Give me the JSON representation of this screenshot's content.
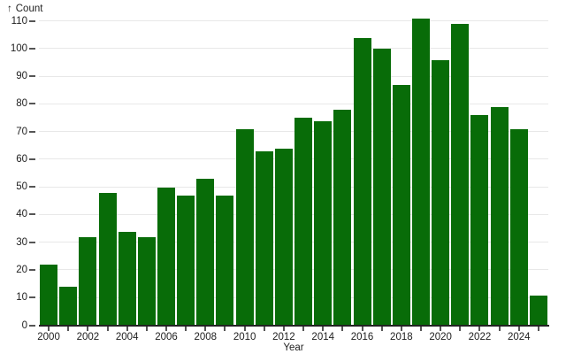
{
  "chart_data": {
    "type": "bar",
    "title": "",
    "ylabel": "Count",
    "ylabel_arrow": "↑",
    "xlabel": "Year",
    "categories": [
      2000,
      2001,
      2002,
      2003,
      2004,
      2005,
      2006,
      2007,
      2008,
      2009,
      2010,
      2011,
      2012,
      2013,
      2014,
      2015,
      2016,
      2017,
      2018,
      2019,
      2020,
      2021,
      2022,
      2023,
      2024,
      2025
    ],
    "values": [
      22,
      14,
      32,
      48,
      34,
      32,
      50,
      47,
      53,
      47,
      71,
      63,
      64,
      75,
      74,
      78,
      104,
      100,
      87,
      111,
      96,
      109,
      76,
      79,
      71,
      11
    ],
    "yticks": [
      0,
      10,
      20,
      30,
      40,
      50,
      60,
      70,
      80,
      90,
      100,
      110
    ],
    "xtick_labels": [
      2000,
      2002,
      2004,
      2006,
      2008,
      2010,
      2012,
      2014,
      2016,
      2018,
      2020,
      2022,
      2024
    ],
    "ylim": [
      0,
      110
    ],
    "grid": "horizontal",
    "legend": "none",
    "colors": {
      "bar": "#086c08",
      "grid": "#e8e8e8",
      "axis_line": "#222222",
      "tick": "#555555",
      "text": "#1f1f1f"
    }
  }
}
